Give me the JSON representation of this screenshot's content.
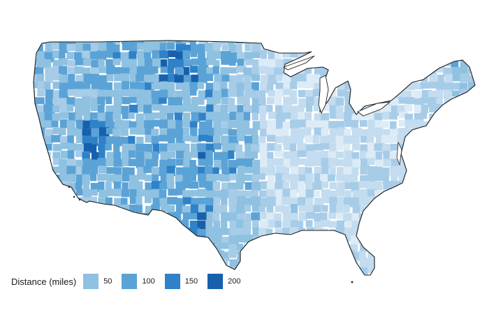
{
  "legend": {
    "title": "Distance (miles)",
    "items": [
      {
        "label": "50",
        "color": "#8fc1e1"
      },
      {
        "label": "100",
        "color": "#5ba3d6"
      },
      {
        "label": "150",
        "color": "#2f82c8"
      },
      {
        "label": "200",
        "color": "#1760ae"
      }
    ]
  },
  "colors": {
    "background": "#ffffff",
    "outline": "#1a1a1a",
    "lightest": "#dcebf6"
  }
}
